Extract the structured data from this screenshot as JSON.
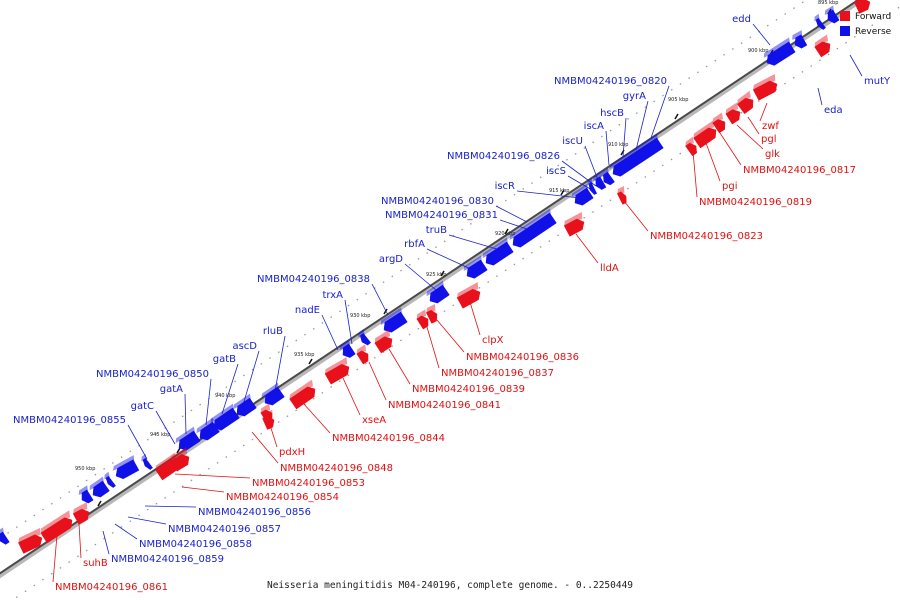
{
  "caption": "Neisseria meningitidis M04-240196, complete genome. - 0..2250449",
  "legend": {
    "forward_label": "Forward",
    "reverse_label": "Reverse",
    "forward_color": "#e8101a",
    "reverse_color": "#1010e8"
  },
  "ticks": [
    "895 kbp",
    "900 kbp",
    "905 kbp",
    "910 kbp",
    "915 kbp",
    "920 kbp",
    "925 kbp",
    "930 kbp",
    "935 kbp",
    "940 kbp",
    "945 kbp",
    "950 kbp"
  ],
  "reverse_genes": [
    "edd",
    "NMBM04240196_0820",
    "gyrA",
    "hscB",
    "iscA",
    "iscU",
    "NMBM04240196_0826",
    "iscS",
    "iscR",
    "NMBM04240196_0830",
    "NMBM04240196_0831",
    "truB",
    "rbfA",
    "argD",
    "NMBM04240196_0838",
    "trxA",
    "nadE",
    "rluB",
    "ascD",
    "gatB",
    "NMBM04240196_0850",
    "gatA",
    "gatC",
    "NMBM04240196_0855"
  ],
  "forward_genes": [
    "zwf",
    "pgl",
    "glk",
    "NMBM04240196_0817",
    "pgi",
    "NMBM04240196_0819",
    "NMBM04240196_0823",
    "lldA",
    "clpX",
    "NMBM04240196_0836",
    "NMBM04240196_0837",
    "NMBM04240196_0839",
    "NMBM04240196_0841",
    "xseA",
    "NMBM04240196_0844",
    "pdxH",
    "NMBM04240196_0848",
    "NMBM04240196_0853",
    "NMBM04240196_0854",
    "suhB",
    "NMBM04240196_0861"
  ],
  "reverse_below": [
    "mutY",
    "eda",
    "NMBM04240196_0856",
    "NMBM04240196_0857",
    "NMBM04240196_0858",
    "NMBM04240196_0859"
  ]
}
